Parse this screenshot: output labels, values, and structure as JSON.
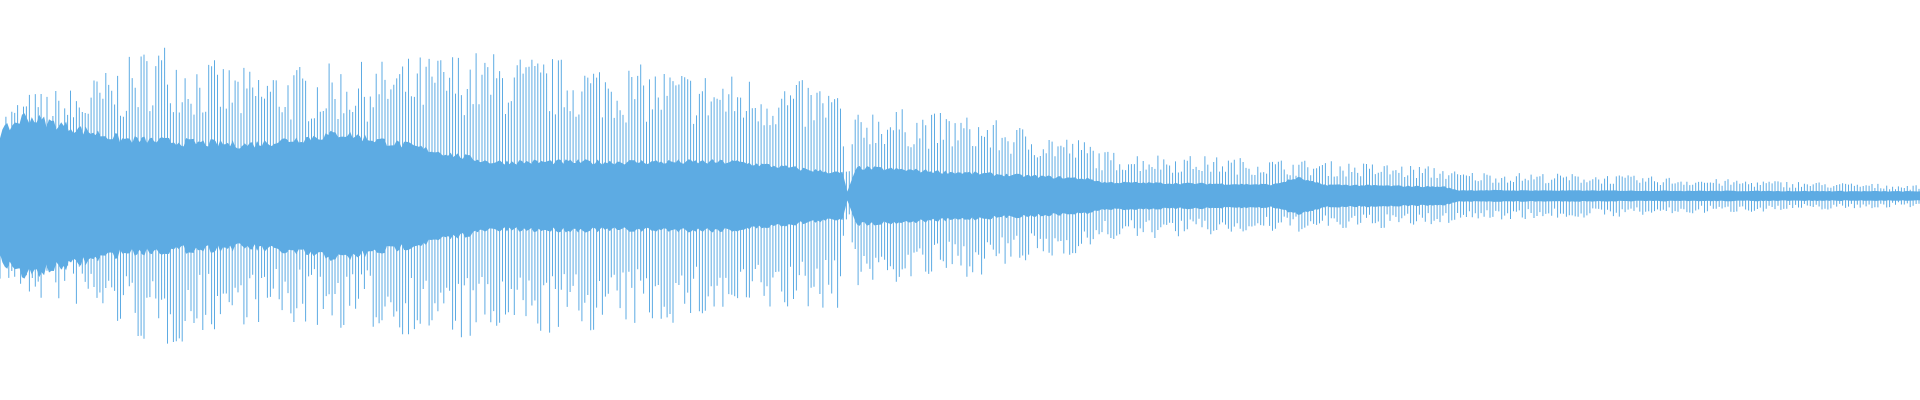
{
  "waveform": {
    "color": "#5dabe3"
  }
}
